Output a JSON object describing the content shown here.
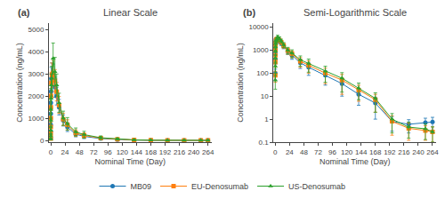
{
  "chart_data": [
    {
      "type": "line",
      "title": "Linear Scale",
      "annotations": [
        "(a)"
      ],
      "xlabel": "Nominal Time (Day)",
      "ylabel": "Concentration (ng/mL)",
      "x": [
        0,
        0.042,
        0.083,
        0.167,
        0.25,
        0.5,
        1,
        2,
        4,
        7,
        10,
        14,
        21,
        28,
        42,
        56,
        84,
        112,
        140,
        168,
        196,
        224,
        252,
        264
      ],
      "series": [
        {
          "name": "MB09",
          "marker": "circle",
          "values": [
            100,
            400,
            700,
            1200,
            1700,
            2200,
            2800,
            3000,
            2950,
            2400,
            2000,
            1500,
            900,
            600,
            280,
            180,
            80,
            35,
            12,
            5,
            0.8,
            0.6,
            0.7,
            0.75
          ],
          "errors": [
            50,
            150,
            250,
            400,
            500,
            500,
            500,
            500,
            500,
            450,
            400,
            350,
            250,
            200,
            120,
            100,
            50,
            25,
            8,
            4,
            0.5,
            0.35,
            0.4,
            0.45
          ]
        },
        {
          "name": "EU-Denosumab",
          "marker": "square",
          "values": [
            80,
            300,
            600,
            1000,
            1500,
            2000,
            2600,
            2950,
            3050,
            2700,
            2200,
            1600,
            950,
            700,
            330,
            220,
            100,
            50,
            18,
            7,
            0.8,
            0.4,
            0.32,
            0.28
          ],
          "errors": [
            40,
            120,
            220,
            350,
            450,
            480,
            480,
            550,
            550,
            500,
            420,
            380,
            280,
            230,
            150,
            120,
            65,
            38,
            12,
            5,
            0.6,
            0.28,
            0.2,
            0.18
          ]
        },
        {
          "name": "US-Denosumab",
          "marker": "triangle-up",
          "values": [
            50,
            200,
            450,
            900,
            1400,
            1900,
            2500,
            2800,
            3700,
            3100,
            2500,
            1700,
            1000,
            750,
            380,
            260,
            120,
            60,
            22,
            8,
            1.0,
            0.45,
            0.38,
            0.28
          ],
          "errors": [
            30,
            100,
            180,
            320,
            400,
            450,
            500,
            550,
            700,
            650,
            500,
            430,
            320,
            280,
            180,
            150,
            80,
            45,
            15,
            6,
            0.75,
            0.3,
            0.25,
            0.18
          ]
        }
      ],
      "xlim": [
        -3,
        270
      ],
      "xticks": [
        0,
        24,
        48,
        72,
        96,
        120,
        144,
        168,
        192,
        216,
        240,
        264
      ],
      "ylim": [
        -80,
        5300
      ],
      "yticks": [
        0,
        1000,
        2000,
        3000,
        4000,
        5000
      ],
      "grid": false,
      "legend": "bottom"
    },
    {
      "type": "line",
      "title": "Semi-Logarithmic Scale",
      "annotations": [
        "(b)"
      ],
      "xlabel": "Nominal Time (Day)",
      "ylabel": "Concentration (ng/mL)",
      "x": [
        0,
        0.042,
        0.083,
        0.167,
        0.25,
        0.5,
        1,
        2,
        4,
        7,
        10,
        14,
        21,
        28,
        42,
        56,
        84,
        112,
        140,
        168,
        196,
        224,
        252,
        264
      ],
      "series": [
        {
          "name": "MB09",
          "marker": "circle",
          "values": [
            100,
            400,
            700,
            1200,
            1700,
            2200,
            2800,
            3000,
            2950,
            2400,
            2000,
            1500,
            900,
            600,
            280,
            180,
            80,
            35,
            12,
            5,
            0.8,
            0.6,
            0.7,
            0.75
          ],
          "errors": [
            50,
            150,
            250,
            400,
            500,
            500,
            500,
            500,
            500,
            450,
            400,
            350,
            250,
            200,
            120,
            100,
            50,
            25,
            8,
            4,
            0.5,
            0.35,
            0.4,
            0.45
          ]
        },
        {
          "name": "EU-Denosumab",
          "marker": "square",
          "values": [
            80,
            300,
            600,
            1000,
            1500,
            2000,
            2600,
            2950,
            3050,
            2700,
            2200,
            1600,
            950,
            700,
            330,
            220,
            100,
            50,
            18,
            7,
            0.8,
            0.4,
            0.32,
            0.28
          ],
          "errors": [
            40,
            120,
            220,
            350,
            450,
            480,
            480,
            550,
            550,
            500,
            420,
            380,
            280,
            230,
            150,
            120,
            65,
            38,
            12,
            5,
            0.6,
            0.28,
            0.2,
            0.18
          ]
        },
        {
          "name": "US-Denosumab",
          "marker": "triangle-up",
          "values": [
            50,
            200,
            450,
            900,
            1400,
            1900,
            2500,
            2800,
            3700,
            3100,
            2500,
            1700,
            1000,
            750,
            380,
            260,
            120,
            60,
            22,
            8,
            1.0,
            0.45,
            0.38,
            0.28
          ],
          "errors": [
            30,
            100,
            180,
            320,
            400,
            450,
            500,
            550,
            700,
            650,
            500,
            430,
            320,
            280,
            180,
            150,
            80,
            45,
            15,
            6,
            0.75,
            0.3,
            0.25,
            0.18
          ]
        }
      ],
      "xlim": [
        -3,
        270
      ],
      "xticks": [
        0,
        24,
        48,
        72,
        96,
        120,
        144,
        168,
        192,
        216,
        240,
        264
      ],
      "ylim": [
        0.1,
        15000
      ],
      "yticks": [
        0.1,
        1,
        10,
        100,
        1000,
        10000
      ],
      "log": "y",
      "grid": false,
      "legend": "bottom"
    }
  ]
}
